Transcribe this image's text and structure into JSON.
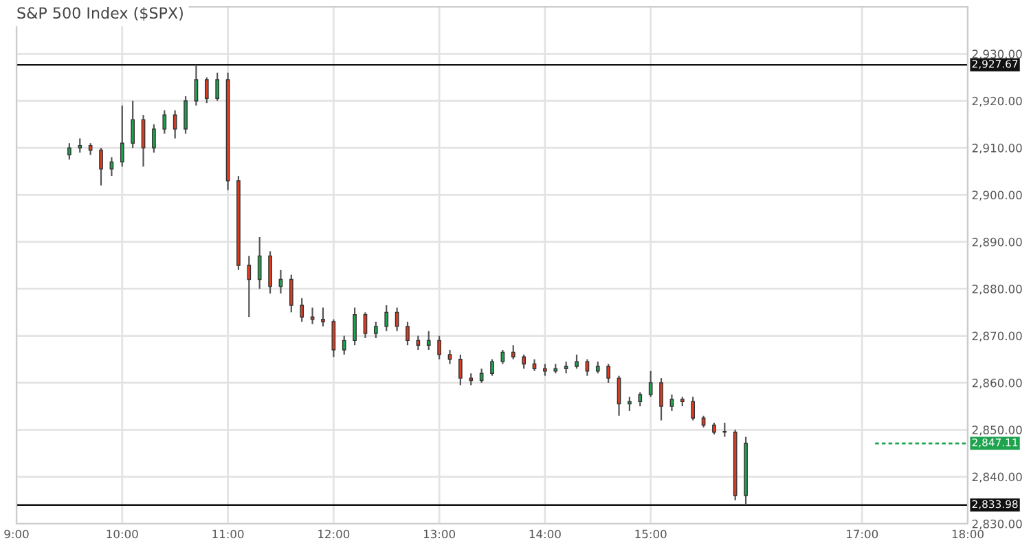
{
  "chart_data": {
    "type": "candlestick",
    "title": "S&P 500 Index ($SPX)",
    "x": [
      9.5,
      9.6,
      9.7,
      9.8,
      9.9,
      10.0,
      10.1,
      10.2,
      10.3,
      10.4,
      10.5,
      10.6,
      10.7,
      10.8,
      10.9,
      11.0,
      11.1,
      11.2,
      11.3,
      11.4,
      11.5,
      11.6,
      11.7,
      11.8,
      11.9,
      12.0,
      12.1,
      12.2,
      12.3,
      12.4,
      12.5,
      12.6,
      12.7,
      12.8,
      12.9,
      13.0,
      13.1,
      13.2,
      13.3,
      13.4,
      13.5,
      13.6,
      13.7,
      13.8,
      13.9,
      14.0,
      14.1,
      14.2,
      14.3,
      14.4,
      14.5,
      14.6,
      14.7,
      14.8,
      14.9,
      15.0,
      15.1,
      15.2,
      15.3,
      15.4,
      15.5,
      15.6,
      15.7,
      15.8,
      15.9
    ],
    "ohlc": [
      [
        2908.5,
        2911,
        2907.5,
        2910
      ],
      [
        2910,
        2912,
        2909,
        2910.5
      ],
      [
        2910.5,
        2911,
        2908.5,
        2909.5
      ],
      [
        2909.5,
        2910,
        2902,
        2905.5
      ],
      [
        2905.5,
        2908,
        2904,
        2907
      ],
      [
        2907,
        2919,
        2906,
        2911
      ],
      [
        2911,
        2920,
        2910,
        2916
      ],
      [
        2916,
        2917,
        2906,
        2910
      ],
      [
        2910,
        2915,
        2909,
        2914
      ],
      [
        2914,
        2918,
        2913,
        2917
      ],
      [
        2917,
        2918,
        2912,
        2914
      ],
      [
        2914,
        2921,
        2913,
        2920
      ],
      [
        2920,
        2927.67,
        2919,
        2924.5
      ],
      [
        2924.5,
        2925,
        2919.5,
        2920.5
      ],
      [
        2920.5,
        2926,
        2920,
        2924.5
      ],
      [
        2924.5,
        2926,
        2901,
        2903
      ],
      [
        2903,
        2904,
        2884,
        2885
      ],
      [
        2885,
        2887,
        2874,
        2882
      ],
      [
        2882,
        2891,
        2880,
        2887
      ],
      [
        2887,
        2888,
        2879,
        2880.5
      ],
      [
        2880.5,
        2884,
        2879,
        2882
      ],
      [
        2882,
        2883,
        2875,
        2876.5
      ],
      [
        2876.5,
        2878,
        2873,
        2874
      ],
      [
        2874,
        2876,
        2872.5,
        2873.5
      ],
      [
        2873.5,
        2876,
        2872,
        2873
      ],
      [
        2873,
        2873.5,
        2865.5,
        2867
      ],
      [
        2867,
        2870,
        2866,
        2869
      ],
      [
        2869,
        2876,
        2868,
        2874.5
      ],
      [
        2874.5,
        2875,
        2869.5,
        2870.5
      ],
      [
        2870.5,
        2873,
        2869.5,
        2872
      ],
      [
        2872,
        2876.5,
        2871,
        2875
      ],
      [
        2875,
        2876,
        2871,
        2872
      ],
      [
        2872,
        2873,
        2868,
        2869
      ],
      [
        2869,
        2870,
        2867,
        2868
      ],
      [
        2868,
        2871,
        2867,
        2869
      ],
      [
        2869,
        2870,
        2865,
        2866
      ],
      [
        2866,
        2867,
        2864,
        2865
      ],
      [
        2865,
        2866,
        2859.5,
        2861
      ],
      [
        2861,
        2862,
        2859.5,
        2860.5
      ],
      [
        2860.5,
        2863,
        2860,
        2862
      ],
      [
        2862,
        2865,
        2861.5,
        2864.5
      ],
      [
        2864.5,
        2867,
        2864,
        2866.5
      ],
      [
        2866.5,
        2868,
        2865,
        2865.5
      ],
      [
        2865.5,
        2866,
        2863,
        2864
      ],
      [
        2864,
        2865,
        2862.5,
        2863
      ],
      [
        2863,
        2864,
        2861.5,
        2862.5
      ],
      [
        2862.5,
        2864,
        2862,
        2863
      ],
      [
        2863,
        2864.5,
        2862,
        2863.5
      ],
      [
        2863.5,
        2866,
        2863,
        2864.5
      ],
      [
        2864.5,
        2865,
        2861.5,
        2862.5
      ],
      [
        2862.5,
        2864.5,
        2862,
        2863.5
      ],
      [
        2863.5,
        2864,
        2860,
        2861
      ],
      [
        2861,
        2861.5,
        2853,
        2855.5
      ],
      [
        2855.5,
        2857,
        2854,
        2856
      ],
      [
        2856,
        2858,
        2855,
        2857.5
      ],
      [
        2857.5,
        2862.5,
        2857,
        2860
      ],
      [
        2860,
        2861,
        2852,
        2855
      ],
      [
        2855,
        2857.5,
        2854,
        2856.5
      ],
      [
        2856.5,
        2857,
        2855,
        2856
      ],
      [
        2856,
        2857,
        2852,
        2852.5
      ],
      [
        2852.5,
        2853,
        2850.5,
        2851
      ],
      [
        2851,
        2851.5,
        2849,
        2849.5
      ],
      [
        2849.5,
        2851.5,
        2848.5,
        2849.5
      ],
      [
        2849.5,
        2850,
        2835,
        2836
      ],
      [
        2836,
        2848.5,
        2833.98,
        2847.11
      ]
    ],
    "colors": [
      "#1fa34f",
      "#1fa34f",
      "#e03c1e",
      "#e03c1e",
      "#1fa34f",
      "#1fa34f",
      "#1fa34f",
      "#e03c1e",
      "#1fa34f",
      "#1fa34f",
      "#e03c1e",
      "#1fa34f",
      "#1fa34f",
      "#e03c1e",
      "#1fa34f",
      "#e03c1e",
      "#e03c1e",
      "#e03c1e",
      "#1fa34f",
      "#e03c1e",
      "#1fa34f",
      "#e03c1e",
      "#e03c1e",
      "#e03c1e",
      "#e03c1e",
      "#e03c1e",
      "#1fa34f",
      "#1fa34f",
      "#e03c1e",
      "#1fa34f",
      "#1fa34f",
      "#e03c1e",
      "#e03c1e",
      "#e03c1e",
      "#1fa34f",
      "#e03c1e",
      "#e03c1e",
      "#e03c1e",
      "#e03c1e",
      "#1fa34f",
      "#1fa34f",
      "#1fa34f",
      "#e03c1e",
      "#e03c1e",
      "#e03c1e",
      "#e03c1e",
      "#1fa34f",
      "#1fa34f",
      "#1fa34f",
      "#e03c1e",
      "#1fa34f",
      "#e03c1e",
      "#e03c1e",
      "#1fa34f",
      "#1fa34f",
      "#1fa34f",
      "#e03c1e",
      "#1fa34f",
      "#e03c1e",
      "#e03c1e",
      "#e03c1e",
      "#e03c1e",
      "#e03c1e",
      "#e03c1e",
      "#1fa34f"
    ],
    "xlim": [
      9,
      18
    ],
    "xticks": [
      {
        "value": 9,
        "label": "9:00"
      },
      {
        "value": 10,
        "label": "10:00"
      },
      {
        "value": 11,
        "label": "11:00"
      },
      {
        "value": 12,
        "label": "12:00"
      },
      {
        "value": 13,
        "label": "13:00"
      },
      {
        "value": 14,
        "label": "14:00"
      },
      {
        "value": 15,
        "label": "15:00"
      },
      {
        "value": 17,
        "label": "17:00"
      },
      {
        "value": 18,
        "label": "18:00"
      }
    ],
    "ylim": [
      2830,
      2940
    ],
    "yticks": [
      {
        "value": 2830,
        "label": "2,830.00"
      },
      {
        "value": 2840,
        "label": "2,840.00"
      },
      {
        "value": 2850,
        "label": "2,850.00"
      },
      {
        "value": 2860,
        "label": "2,860.00"
      },
      {
        "value": 2870,
        "label": "2,870.00"
      },
      {
        "value": 2880,
        "label": "2,880.00"
      },
      {
        "value": 2890,
        "label": "2,890.00"
      },
      {
        "value": 2900,
        "label": "2,900.00"
      },
      {
        "value": 2910,
        "label": "2,910.00"
      },
      {
        "value": 2920,
        "label": "2,920.00"
      },
      {
        "value": 2930,
        "label": "2,930.00"
      }
    ],
    "ref_lines": [
      {
        "axis": "y",
        "value": 2927.67,
        "label": "2,927.67",
        "color": "#111111",
        "line_style": "solid"
      },
      {
        "axis": "y",
        "value": 2833.98,
        "label": "2,833.98",
        "color": "#111111",
        "line_style": "solid"
      },
      {
        "axis": "y",
        "value": 2847.11,
        "label": "2,847.11",
        "color": "#1fa34f",
        "line_style": "dashed"
      }
    ],
    "grid": true
  }
}
